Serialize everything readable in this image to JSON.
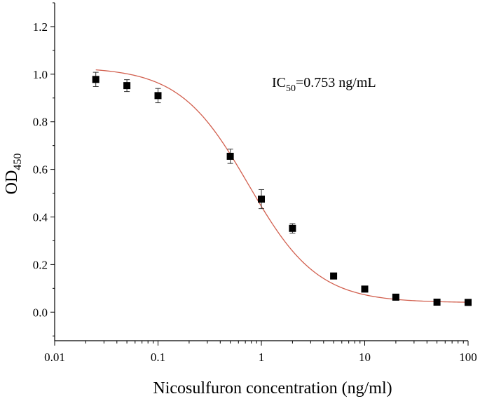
{
  "chart_data": {
    "type": "scatter",
    "title": "",
    "xlabel": "Nicosulfuron concentration (ng/ml)",
    "ylabel": {
      "main": "OD",
      "sub": "450"
    },
    "xscale": "log",
    "xlim": [
      0.01,
      100
    ],
    "ylim": [
      -0.12,
      1.3
    ],
    "x_ticks": [
      0.01,
      0.1,
      1,
      10,
      100
    ],
    "x_tick_labels": [
      "0.01",
      "0.1",
      "1",
      "10",
      "100"
    ],
    "y_ticks": [
      0.0,
      0.2,
      0.4,
      0.6,
      0.8,
      1.0,
      1.2
    ],
    "y_tick_labels": [
      "0.0",
      "0.2",
      "0.4",
      "0.6",
      "0.8",
      "1.0",
      "1.2"
    ],
    "grid": false,
    "annotation": {
      "main": "IC",
      "sub": "50",
      "rest": "=0.753 ng/mL"
    },
    "points": [
      {
        "x": 0.025,
        "y": 0.978,
        "err": 0.03
      },
      {
        "x": 0.05,
        "y": 0.952,
        "err": 0.025
      },
      {
        "x": 0.1,
        "y": 0.91,
        "err": 0.03
      },
      {
        "x": 0.5,
        "y": 0.655,
        "err": 0.03
      },
      {
        "x": 1,
        "y": 0.475,
        "err": 0.04
      },
      {
        "x": 2,
        "y": 0.352,
        "err": 0.02
      },
      {
        "x": 5,
        "y": 0.152,
        "err": 0.01
      },
      {
        "x": 10,
        "y": 0.097,
        "err": 0.008
      },
      {
        "x": 20,
        "y": 0.063,
        "err": 0.005
      },
      {
        "x": 50,
        "y": 0.042,
        "err": 0.003
      },
      {
        "x": 100,
        "y": 0.041,
        "err": 0.003
      }
    ],
    "fit": {
      "type": "4PL",
      "top": 1.03,
      "bottom": 0.04,
      "ic50": 0.753,
      "hill": 1.3,
      "x_range": [
        0.025,
        100
      ]
    },
    "colors": {
      "points": "#000000",
      "fit": "#d2604f",
      "axes": "#000000"
    }
  }
}
